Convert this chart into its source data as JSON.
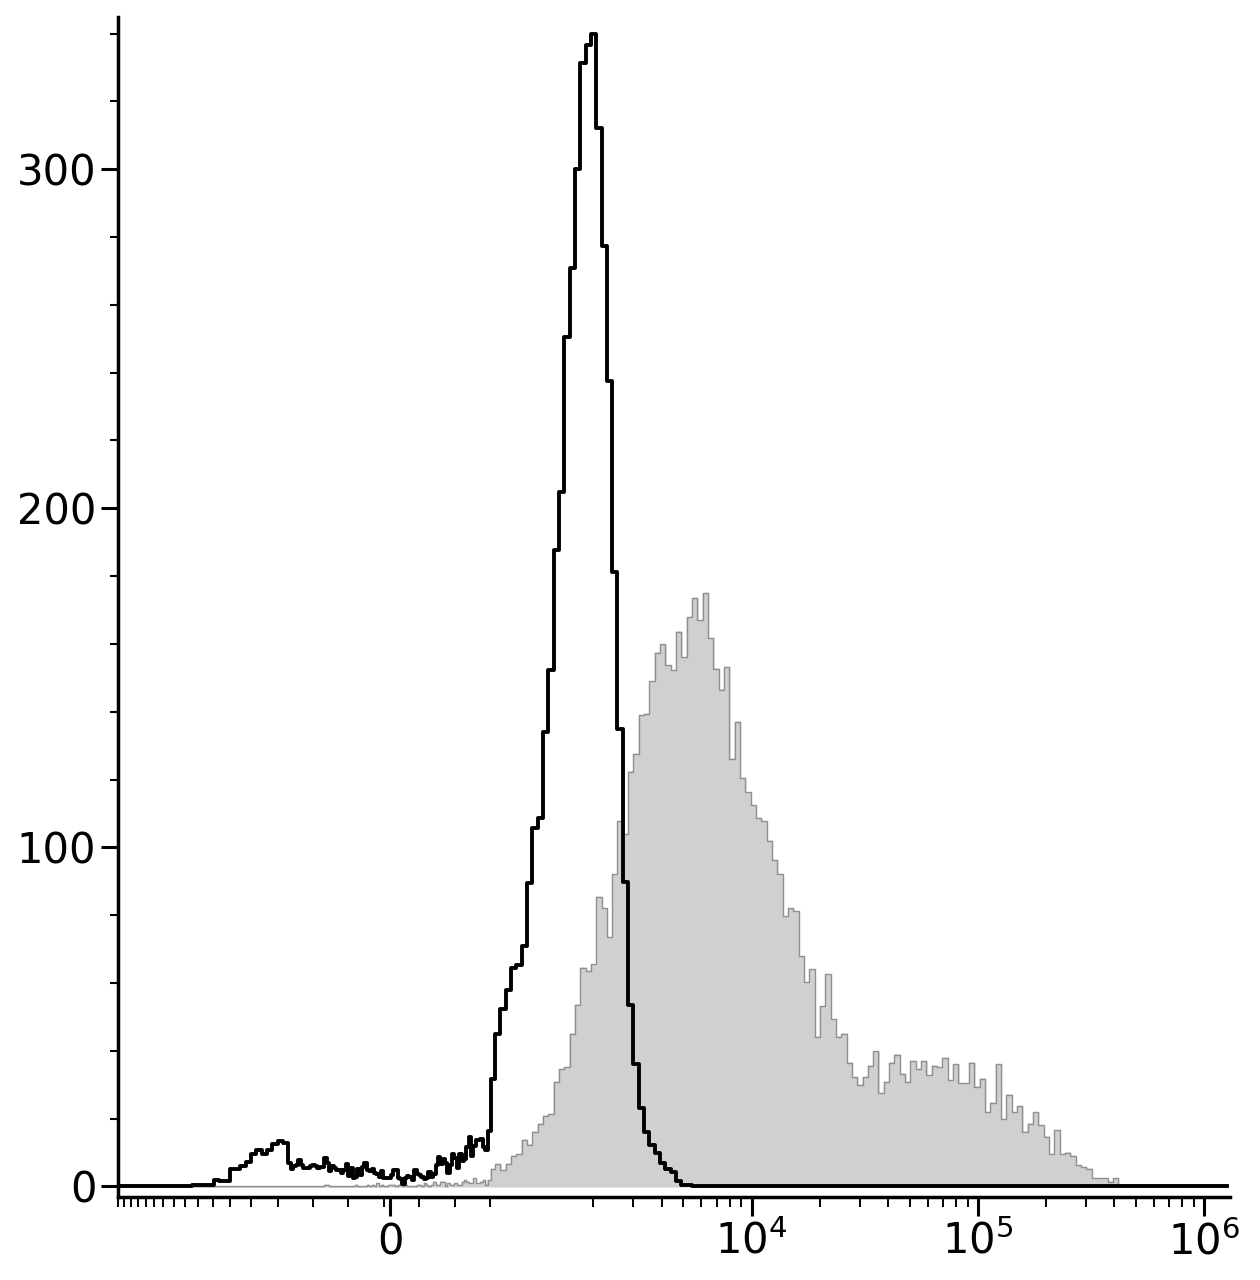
{
  "fig_width": 12.6,
  "fig_height": 12.8,
  "dpi": 100,
  "background_color": "#ffffff",
  "ylim": [
    -3,
    345
  ],
  "yticks": [
    0,
    100,
    200,
    300
  ],
  "spine_linewidth": 2.5,
  "black_hist_color": "#000000",
  "gray_fill_color": "#d0d0d0",
  "gray_edge_color": "#909090",
  "black_hist_linewidth": 2.8,
  "gray_hist_linewidth": 1.0,
  "linthresh": 700,
  "linscale": 0.4,
  "xmin": -4000,
  "xmax": 1300000,
  "n_bins": 256,
  "unstained_peak_height": 340,
  "stained_peak_height": 175,
  "tick_labelsize": 30,
  "ytick_labelsize": 30
}
